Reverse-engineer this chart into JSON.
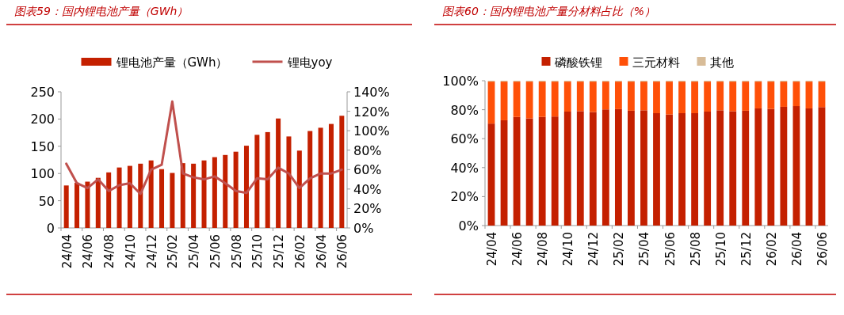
{
  "chart_data": [
    {
      "type": "bar",
      "title": "图表59：国内锂电池产量（GWh）",
      "categories": [
        "24/04",
        null,
        "24/06",
        null,
        "24/08",
        null,
        "24/10",
        null,
        "24/12",
        null,
        "25/02",
        null,
        "25/04",
        null,
        "25/06",
        null,
        "25/08",
        null,
        "25/10",
        null,
        "25/12",
        null,
        "26/02",
        null,
        "26/04",
        null,
        "26/06"
      ],
      "series": [
        {
          "name": "锂电池产量（GWh）",
          "color": "#c42000",
          "values": [
            78,
            83,
            85,
            92,
            102,
            111,
            114,
            118,
            124,
            108,
            101,
            119,
            118,
            124,
            130,
            134,
            140,
            151,
            171,
            176,
            201,
            168,
            142,
            178,
            184,
            191,
            206
          ]
        },
        {
          "name": "锂电yoy",
          "type": "line",
          "axis": "y2",
          "color": "#c0504d",
          "values": [
            66,
            46,
            41,
            50,
            38,
            44,
            46,
            35,
            60,
            65,
            130,
            56,
            52,
            50,
            53,
            46,
            38,
            36,
            51,
            50,
            62,
            56,
            41,
            51,
            56,
            56,
            60
          ]
        }
      ],
      "ylim": [
        0,
        250
      ],
      "yticks": [
        0,
        50,
        100,
        150,
        200,
        250
      ],
      "y2lim": [
        0,
        140
      ],
      "y2ticks": [
        {
          "value": 0,
          "label": "0%"
        },
        {
          "value": 20,
          "label": "20%"
        },
        {
          "value": 40,
          "label": "40%"
        },
        {
          "value": 60,
          "label": "60%"
        },
        {
          "value": 80,
          "label": "80%"
        },
        {
          "value": 100,
          "label": "100%"
        },
        {
          "value": 120,
          "label": "120%"
        },
        {
          "value": 140,
          "label": "140%"
        }
      ],
      "legend": "top"
    },
    {
      "type": "bar",
      "title": "图表60：国内锂电池产量分材料占比（%）",
      "stacked": true,
      "categories": [
        "24/04",
        null,
        "24/06",
        null,
        "24/08",
        null,
        "24/10",
        null,
        "24/12",
        null,
        "25/02",
        null,
        "25/04",
        null,
        "25/06",
        null,
        "25/08",
        null,
        "25/10",
        null,
        "25/12",
        null,
        "26/02",
        null,
        "26/04",
        null,
        "26/06"
      ],
      "series": [
        {
          "name": "磷酸铁锂",
          "color": "#c42000",
          "values": [
            70.4,
            72.7,
            75.0,
            74.0,
            75.0,
            75.3,
            78.7,
            79.0,
            78.4,
            80.2,
            80.4,
            79.3,
            79.6,
            77.6,
            76.7,
            77.6,
            77.6,
            78.7,
            79.6,
            78.9,
            79.3,
            80.9,
            80.5,
            82.0,
            82.5,
            80.9,
            81.8
          ]
        },
        {
          "name": "三元材料",
          "color": "#ff5008",
          "values": [
            29.0,
            26.7,
            24.4,
            25.4,
            24.4,
            24.1,
            20.7,
            20.4,
            21.0,
            19.2,
            19.0,
            20.1,
            19.8,
            21.8,
            22.7,
            21.8,
            21.8,
            20.7,
            19.8,
            20.5,
            20.1,
            18.5,
            18.9,
            17.4,
            16.9,
            18.5,
            17.6
          ]
        },
        {
          "name": "其他",
          "color": "#d8bc98",
          "values": [
            0.6,
            0.6,
            0.6,
            0.6,
            0.6,
            0.6,
            0.6,
            0.6,
            0.6,
            0.6,
            0.6,
            0.6,
            0.6,
            0.6,
            0.6,
            0.6,
            0.6,
            0.6,
            0.6,
            0.6,
            0.6,
            0.6,
            0.6,
            0.6,
            0.6,
            0.6,
            0.6
          ]
        }
      ],
      "ylim": [
        0,
        100
      ],
      "yticks": [
        {
          "value": 0,
          "label": "0%"
        },
        {
          "value": 20,
          "label": "20%"
        },
        {
          "value": 40,
          "label": "40%"
        },
        {
          "value": 60,
          "label": "60%"
        },
        {
          "value": 80,
          "label": "80%"
        },
        {
          "value": 100,
          "label": "100%"
        }
      ],
      "legend": "top"
    }
  ]
}
